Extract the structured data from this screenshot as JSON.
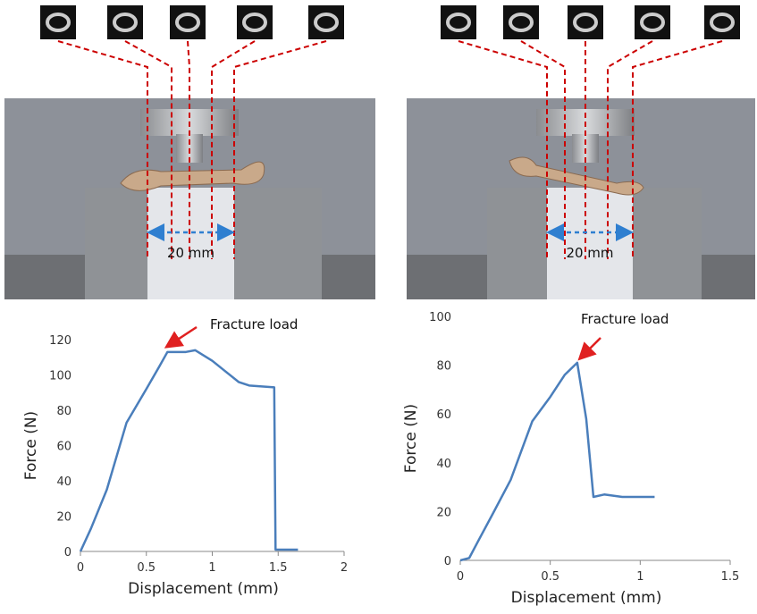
{
  "photos": [
    {
      "label": "20 mm"
    },
    {
      "label": "20 mm"
    }
  ],
  "chart_data": [
    {
      "type": "line",
      "x_label": "Displacement (mm)",
      "y_label": "Force (N)",
      "annotation": "Fracture load",
      "x": [
        0,
        0.08,
        0.2,
        0.35,
        0.5,
        0.6,
        0.66,
        0.72,
        0.8,
        0.87,
        1.0,
        1.1,
        1.2,
        1.28,
        1.47,
        1.48,
        1.65
      ],
      "values": [
        0,
        13,
        35,
        73,
        92,
        105,
        113,
        113,
        113,
        114,
        108,
        102,
        96,
        94,
        93,
        1,
        1
      ],
      "color": "#4a7ebb",
      "xlim": [
        0,
        2
      ],
      "ylim": [
        0,
        120
      ],
      "xticks": [
        0,
        0.5,
        1,
        1.5,
        2
      ],
      "yticks": [
        0,
        20,
        40,
        60,
        80,
        100,
        120
      ]
    },
    {
      "type": "line",
      "x_label": "Displacement (mm)",
      "y_label": "Force (N)",
      "annotation": "Fracture load",
      "x": [
        0,
        0.05,
        0.1,
        0.18,
        0.28,
        0.4,
        0.5,
        0.58,
        0.65,
        0.7,
        0.74,
        0.8,
        0.9,
        1.08
      ],
      "values": [
        0,
        1,
        8,
        19,
        33,
        57,
        67,
        76,
        81,
        58,
        26,
        27,
        26,
        26
      ],
      "color": "#4a7ebb",
      "xlim": [
        0,
        1.5
      ],
      "ylim": [
        0,
        100
      ],
      "xticks": [
        0,
        0.5,
        1,
        1.5
      ],
      "yticks": [
        0,
        20,
        40,
        60,
        80,
        100
      ]
    }
  ]
}
